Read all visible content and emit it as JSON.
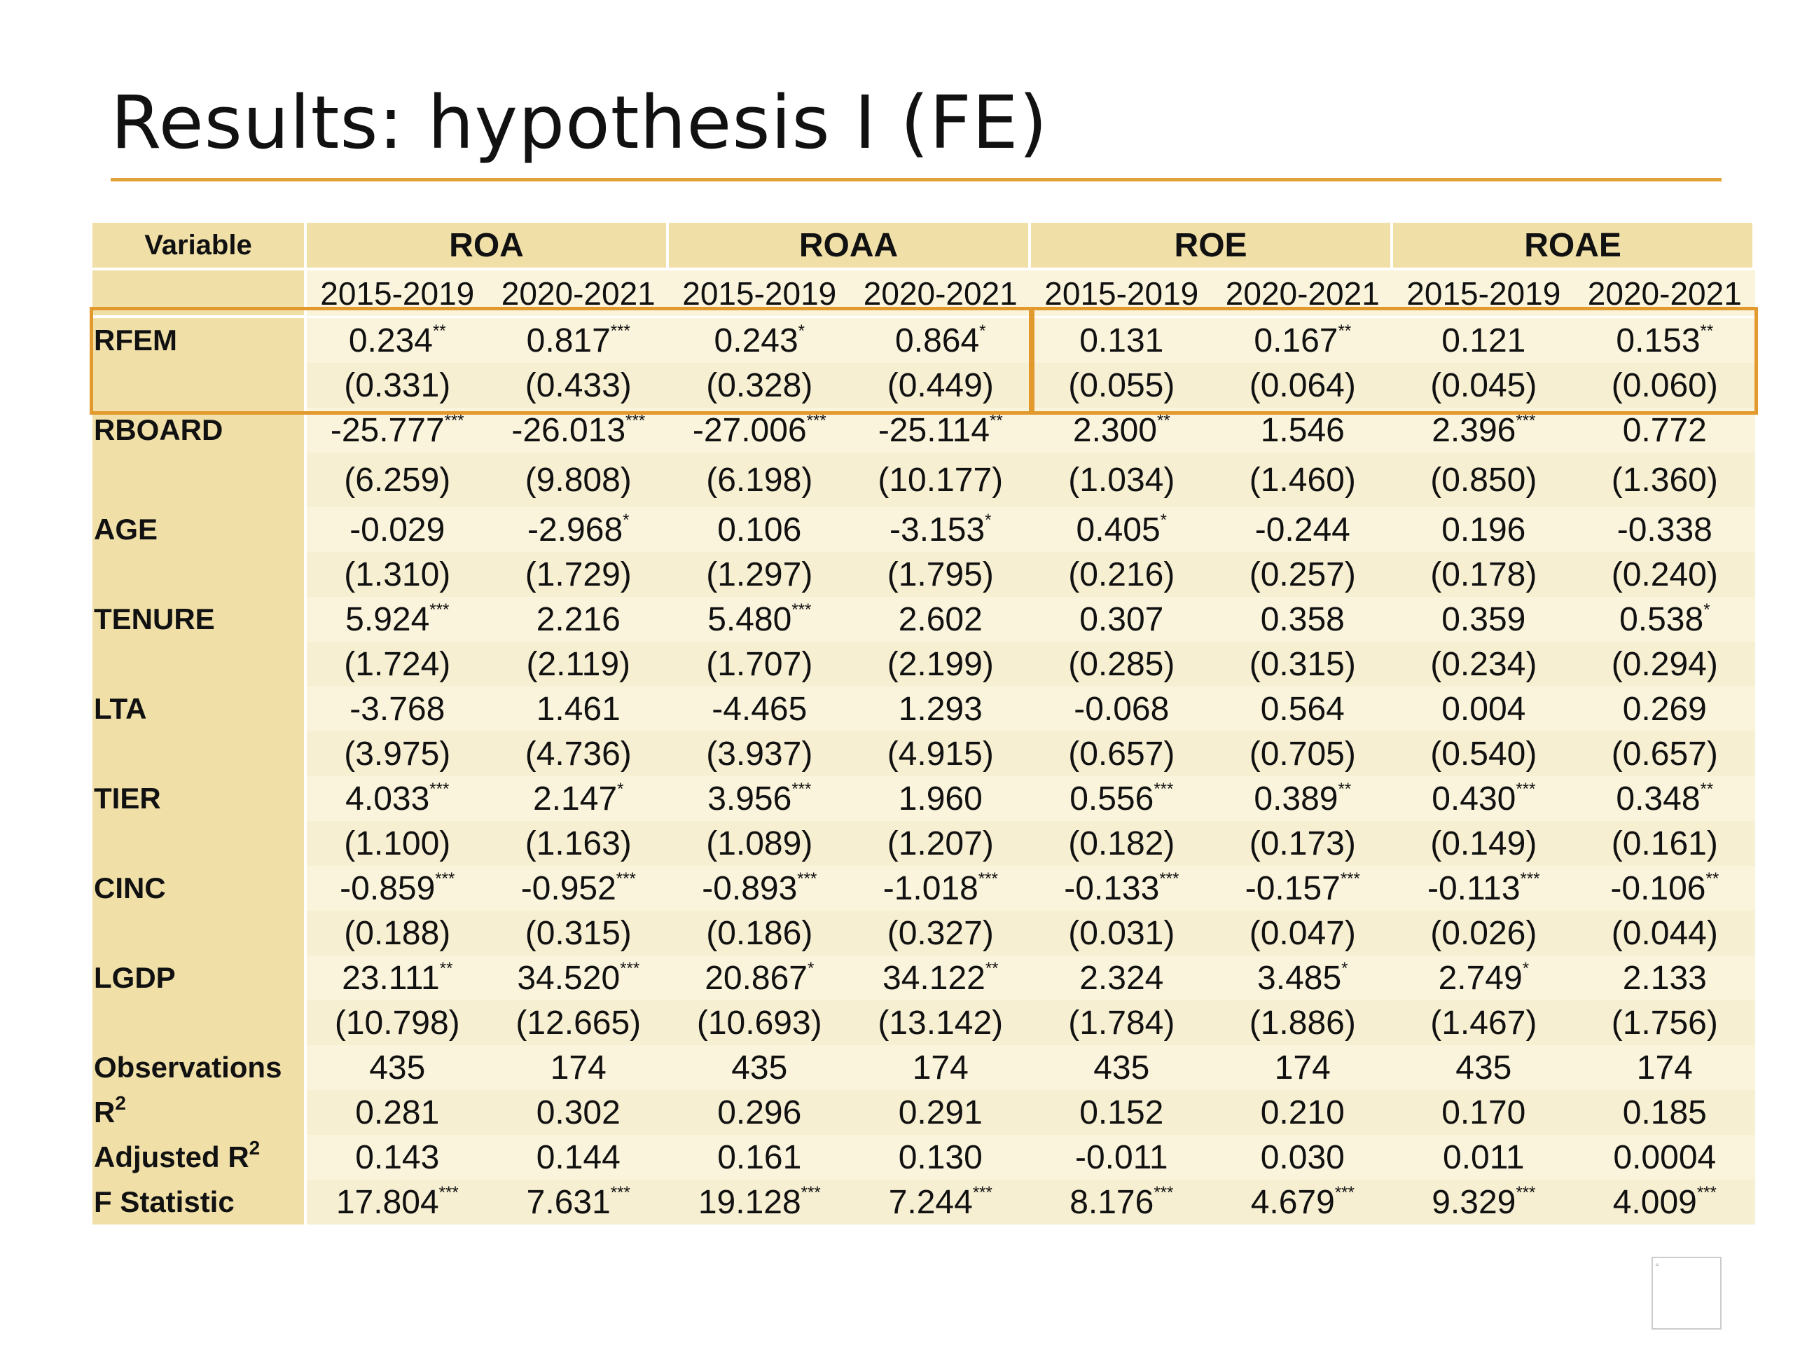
{
  "slide": {
    "title": "Results: hypothesis I (FE)"
  },
  "table": {
    "variable_header": "Variable",
    "groups": [
      "ROA",
      "ROAA",
      "ROE",
      "ROAE"
    ],
    "periods": [
      "2015-2019",
      "2020-2021",
      "2015-2019",
      "2020-2021",
      "2015-2019",
      "2020-2021",
      "2015-2019",
      "2020-2021"
    ],
    "rows": [
      {
        "label": "RFEM",
        "cells": [
          {
            "v": "0.234",
            "s": "**"
          },
          {
            "v": "0.817",
            "s": "***"
          },
          {
            "v": "0.243",
            "s": "*"
          },
          {
            "v": "0.864",
            "s": "*"
          },
          {
            "v": "0.131",
            "s": ""
          },
          {
            "v": "0.167",
            "s": "**"
          },
          {
            "v": "0.121",
            "s": ""
          },
          {
            "v": "0.153",
            "s": "**"
          }
        ]
      },
      {
        "label": "",
        "cells": [
          {
            "v": "(0.331)",
            "s": ""
          },
          {
            "v": "(0.433)",
            "s": ""
          },
          {
            "v": "(0.328)",
            "s": ""
          },
          {
            "v": "(0.449)",
            "s": ""
          },
          {
            "v": "(0.055)",
            "s": ""
          },
          {
            "v": "(0.064)",
            "s": ""
          },
          {
            "v": "(0.045)",
            "s": ""
          },
          {
            "v": "(0.060)",
            "s": ""
          }
        ]
      },
      {
        "label": "RBOARD",
        "cells": [
          {
            "v": "-25.777",
            "s": "***"
          },
          {
            "v": "-26.013",
            "s": "***"
          },
          {
            "v": "-27.006",
            "s": "***"
          },
          {
            "v": "-25.114",
            "s": "**"
          },
          {
            "v": "2.300",
            "s": "**"
          },
          {
            "v": "1.546",
            "s": ""
          },
          {
            "v": "2.396",
            "s": "***"
          },
          {
            "v": "0.772",
            "s": ""
          }
        ]
      },
      {
        "label": "",
        "cells": [
          {
            "v": "(6.259)",
            "s": ""
          },
          {
            "v": "(9.808)",
            "s": ""
          },
          {
            "v": "(6.198)",
            "s": ""
          },
          {
            "v": "(10.177)",
            "s": ""
          },
          {
            "v": "(1.034)",
            "s": ""
          },
          {
            "v": "(1.460)",
            "s": ""
          },
          {
            "v": "(0.850)",
            "s": ""
          },
          {
            "v": "(1.360)",
            "s": ""
          }
        ]
      },
      {
        "label": "AGE",
        "cells": [
          {
            "v": "-0.029",
            "s": ""
          },
          {
            "v": "-2.968",
            "s": "*"
          },
          {
            "v": "0.106",
            "s": ""
          },
          {
            "v": "-3.153",
            "s": "*"
          },
          {
            "v": "0.405",
            "s": "*"
          },
          {
            "v": "-0.244",
            "s": ""
          },
          {
            "v": "0.196",
            "s": ""
          },
          {
            "v": "-0.338",
            "s": ""
          }
        ]
      },
      {
        "label": "",
        "cells": [
          {
            "v": "(1.310)",
            "s": ""
          },
          {
            "v": "(1.729)",
            "s": ""
          },
          {
            "v": "(1.297)",
            "s": ""
          },
          {
            "v": "(1.795)",
            "s": ""
          },
          {
            "v": "(0.216)",
            "s": ""
          },
          {
            "v": "(0.257)",
            "s": ""
          },
          {
            "v": "(0.178)",
            "s": ""
          },
          {
            "v": "(0.240)",
            "s": ""
          }
        ]
      },
      {
        "label": "TENURE",
        "cells": [
          {
            "v": "5.924",
            "s": "***"
          },
          {
            "v": "2.216",
            "s": ""
          },
          {
            "v": "5.480",
            "s": "***"
          },
          {
            "v": "2.602",
            "s": ""
          },
          {
            "v": "0.307",
            "s": ""
          },
          {
            "v": "0.358",
            "s": ""
          },
          {
            "v": "0.359",
            "s": ""
          },
          {
            "v": "0.538",
            "s": "*"
          }
        ]
      },
      {
        "label": "",
        "cells": [
          {
            "v": "(1.724)",
            "s": ""
          },
          {
            "v": "(2.119)",
            "s": ""
          },
          {
            "v": "(1.707)",
            "s": ""
          },
          {
            "v": "(2.199)",
            "s": ""
          },
          {
            "v": "(0.285)",
            "s": ""
          },
          {
            "v": "(0.315)",
            "s": ""
          },
          {
            "v": "(0.234)",
            "s": ""
          },
          {
            "v": "(0.294)",
            "s": ""
          }
        ]
      },
      {
        "label": "LTA",
        "cells": [
          {
            "v": "-3.768",
            "s": ""
          },
          {
            "v": "1.461",
            "s": ""
          },
          {
            "v": "-4.465",
            "s": ""
          },
          {
            "v": "1.293",
            "s": ""
          },
          {
            "v": "-0.068",
            "s": ""
          },
          {
            "v": "0.564",
            "s": ""
          },
          {
            "v": "0.004",
            "s": ""
          },
          {
            "v": "0.269",
            "s": ""
          }
        ]
      },
      {
        "label": "",
        "cells": [
          {
            "v": "(3.975)",
            "s": ""
          },
          {
            "v": "(4.736)",
            "s": ""
          },
          {
            "v": "(3.937)",
            "s": ""
          },
          {
            "v": "(4.915)",
            "s": ""
          },
          {
            "v": "(0.657)",
            "s": ""
          },
          {
            "v": "(0.705)",
            "s": ""
          },
          {
            "v": "(0.540)",
            "s": ""
          },
          {
            "v": "(0.657)",
            "s": ""
          }
        ]
      },
      {
        "label": "TIER",
        "cells": [
          {
            "v": "4.033",
            "s": "***"
          },
          {
            "v": "2.147",
            "s": "*"
          },
          {
            "v": "3.956",
            "s": "***"
          },
          {
            "v": "1.960",
            "s": ""
          },
          {
            "v": "0.556",
            "s": "***"
          },
          {
            "v": "0.389",
            "s": "**"
          },
          {
            "v": "0.430",
            "s": "***"
          },
          {
            "v": "0.348",
            "s": "**"
          }
        ]
      },
      {
        "label": "",
        "cells": [
          {
            "v": "(1.100)",
            "s": ""
          },
          {
            "v": "(1.163)",
            "s": ""
          },
          {
            "v": "(1.089)",
            "s": ""
          },
          {
            "v": "(1.207)",
            "s": ""
          },
          {
            "v": "(0.182)",
            "s": ""
          },
          {
            "v": "(0.173)",
            "s": ""
          },
          {
            "v": "(0.149)",
            "s": ""
          },
          {
            "v": "(0.161)",
            "s": ""
          }
        ]
      },
      {
        "label": "CINC",
        "cells": [
          {
            "v": "-0.859",
            "s": "***"
          },
          {
            "v": "-0.952",
            "s": "***"
          },
          {
            "v": "-0.893",
            "s": "***"
          },
          {
            "v": "-1.018",
            "s": "***"
          },
          {
            "v": "-0.133",
            "s": "***"
          },
          {
            "v": "-0.157",
            "s": "***"
          },
          {
            "v": "-0.113",
            "s": "***"
          },
          {
            "v": "-0.106",
            "s": "**"
          }
        ]
      },
      {
        "label": "",
        "cells": [
          {
            "v": "(0.188)",
            "s": ""
          },
          {
            "v": "(0.315)",
            "s": ""
          },
          {
            "v": "(0.186)",
            "s": ""
          },
          {
            "v": "(0.327)",
            "s": ""
          },
          {
            "v": "(0.031)",
            "s": ""
          },
          {
            "v": "(0.047)",
            "s": ""
          },
          {
            "v": "(0.026)",
            "s": ""
          },
          {
            "v": "(0.044)",
            "s": ""
          }
        ]
      },
      {
        "label": "LGDP",
        "cells": [
          {
            "v": "23.111",
            "s": "**"
          },
          {
            "v": "34.520",
            "s": "***"
          },
          {
            "v": "20.867",
            "s": "*"
          },
          {
            "v": "34.122",
            "s": "**"
          },
          {
            "v": "2.324",
            "s": ""
          },
          {
            "v": "3.485",
            "s": "*"
          },
          {
            "v": "2.749",
            "s": "*"
          },
          {
            "v": "2.133",
            "s": ""
          }
        ]
      },
      {
        "label": "",
        "cells": [
          {
            "v": "(10.798)",
            "s": ""
          },
          {
            "v": "(12.665)",
            "s": ""
          },
          {
            "v": "(10.693)",
            "s": ""
          },
          {
            "v": "(13.142)",
            "s": ""
          },
          {
            "v": "(1.784)",
            "s": ""
          },
          {
            "v": "(1.886)",
            "s": ""
          },
          {
            "v": "(1.467)",
            "s": ""
          },
          {
            "v": "(1.756)",
            "s": ""
          }
        ]
      },
      {
        "label": "Observations",
        "cells": [
          {
            "v": "435",
            "s": ""
          },
          {
            "v": "174",
            "s": ""
          },
          {
            "v": "435",
            "s": ""
          },
          {
            "v": "174",
            "s": ""
          },
          {
            "v": "435",
            "s": ""
          },
          {
            "v": "174",
            "s": ""
          },
          {
            "v": "435",
            "s": ""
          },
          {
            "v": "174",
            "s": ""
          }
        ]
      },
      {
        "label": "R",
        "label_sup": "2",
        "cells": [
          {
            "v": "0.281",
            "s": ""
          },
          {
            "v": "0.302",
            "s": ""
          },
          {
            "v": "0.296",
            "s": ""
          },
          {
            "v": "0.291",
            "s": ""
          },
          {
            "v": "0.152",
            "s": ""
          },
          {
            "v": "0.210",
            "s": ""
          },
          {
            "v": "0.170",
            "s": ""
          },
          {
            "v": "0.185",
            "s": ""
          }
        ]
      },
      {
        "label": "Adjusted R",
        "label_sup": "2",
        "cells": [
          {
            "v": "0.143",
            "s": ""
          },
          {
            "v": "0.144",
            "s": ""
          },
          {
            "v": "0.161",
            "s": ""
          },
          {
            "v": "0.130",
            "s": ""
          },
          {
            "v": "-0.011",
            "s": ""
          },
          {
            "v": "0.030",
            "s": ""
          },
          {
            "v": "0.011",
            "s": ""
          },
          {
            "v": "0.0004",
            "s": ""
          }
        ]
      },
      {
        "label": "F Statistic",
        "cells": [
          {
            "v": "17.804",
            "s": "***"
          },
          {
            "v": "7.631",
            "s": "***"
          },
          {
            "v": "19.128",
            "s": "***"
          },
          {
            "v": "7.244",
            "s": "***"
          },
          {
            "v": "8.176",
            "s": "***"
          },
          {
            "v": "4.679",
            "s": "***"
          },
          {
            "v": "9.329",
            "s": "***"
          },
          {
            "v": "4.009",
            "s": "***"
          }
        ]
      }
    ]
  },
  "colors": {
    "accent": "#e0a33a",
    "highlight_border": "#e29a2e",
    "header_fill": "#f0e0a8",
    "cell_fill": "#fbf4dc"
  }
}
